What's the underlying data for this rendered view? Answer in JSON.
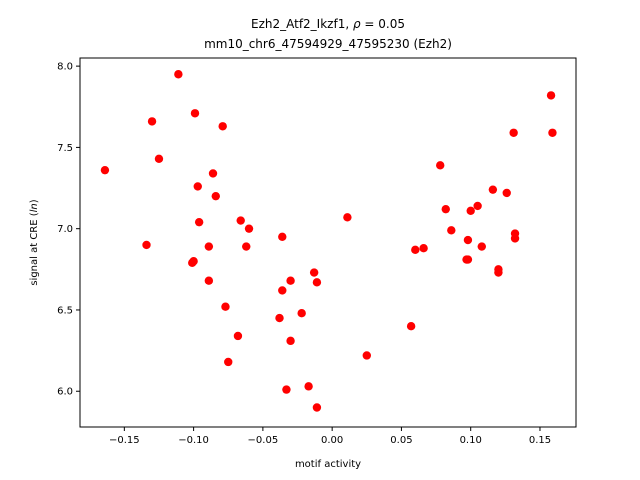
{
  "chart_data": {
    "type": "scatter",
    "title": {
      "prefix": "Ezh2_Atf2_Ikzf1, ",
      "rho_symbol": "ρ",
      "rho_value": " = 0.05",
      "line2": "mm10_chr6_47594929_47595230 (Ezh2)"
    },
    "xlabel": "motif activity",
    "ylabel": {
      "prefix": "signal at CRE (",
      "italic": "ln",
      "suffix": ")"
    },
    "xlim": [
      -0.182,
      0.176
    ],
    "ylim": [
      5.78,
      8.05
    ],
    "x_ticks": [
      {
        "value": -0.15,
        "label": "−0.15"
      },
      {
        "value": -0.1,
        "label": "−0.10"
      },
      {
        "value": -0.05,
        "label": "−0.05"
      },
      {
        "value": 0.0,
        "label": "0.00"
      },
      {
        "value": 0.05,
        "label": "0.05"
      },
      {
        "value": 0.1,
        "label": "0.10"
      },
      {
        "value": 0.15,
        "label": "0.15"
      }
    ],
    "y_ticks": [
      {
        "value": 6.0,
        "label": "6.0"
      },
      {
        "value": 6.5,
        "label": "6.5"
      },
      {
        "value": 7.0,
        "label": "7.0"
      },
      {
        "value": 7.5,
        "label": "7.5"
      },
      {
        "value": 8.0,
        "label": "8.0"
      }
    ],
    "grid": false,
    "marker_color": "#ff0000",
    "points": [
      {
        "x": -0.164,
        "y": 7.36
      },
      {
        "x": -0.134,
        "y": 6.9
      },
      {
        "x": -0.13,
        "y": 7.66
      },
      {
        "x": -0.125,
        "y": 7.43
      },
      {
        "x": -0.111,
        "y": 7.95
      },
      {
        "x": -0.101,
        "y": 6.79
      },
      {
        "x": -0.1,
        "y": 6.8
      },
      {
        "x": -0.099,
        "y": 7.71
      },
      {
        "x": -0.097,
        "y": 7.26
      },
      {
        "x": -0.096,
        "y": 7.04
      },
      {
        "x": -0.089,
        "y": 6.89
      },
      {
        "x": -0.089,
        "y": 6.68
      },
      {
        "x": -0.086,
        "y": 7.34
      },
      {
        "x": -0.084,
        "y": 7.2
      },
      {
        "x": -0.079,
        "y": 7.63
      },
      {
        "x": -0.077,
        "y": 6.52
      },
      {
        "x": -0.075,
        "y": 6.18
      },
      {
        "x": -0.068,
        "y": 6.34
      },
      {
        "x": -0.066,
        "y": 7.05
      },
      {
        "x": -0.062,
        "y": 6.89
      },
      {
        "x": -0.06,
        "y": 7.0
      },
      {
        "x": -0.038,
        "y": 6.45
      },
      {
        "x": -0.036,
        "y": 6.95
      },
      {
        "x": -0.036,
        "y": 6.62
      },
      {
        "x": -0.033,
        "y": 6.01
      },
      {
        "x": -0.03,
        "y": 6.68
      },
      {
        "x": -0.03,
        "y": 6.31
      },
      {
        "x": -0.022,
        "y": 6.48
      },
      {
        "x": -0.017,
        "y": 6.03
      },
      {
        "x": -0.013,
        "y": 6.73
      },
      {
        "x": -0.011,
        "y": 6.67
      },
      {
        "x": -0.011,
        "y": 5.9
      },
      {
        "x": 0.011,
        "y": 7.07
      },
      {
        "x": 0.025,
        "y": 6.22
      },
      {
        "x": 0.057,
        "y": 6.4
      },
      {
        "x": 0.06,
        "y": 6.87
      },
      {
        "x": 0.066,
        "y": 6.88
      },
      {
        "x": 0.078,
        "y": 7.39
      },
      {
        "x": 0.082,
        "y": 7.12
      },
      {
        "x": 0.086,
        "y": 6.99
      },
      {
        "x": 0.097,
        "y": 6.81
      },
      {
        "x": 0.098,
        "y": 6.81
      },
      {
        "x": 0.098,
        "y": 6.93
      },
      {
        "x": 0.1,
        "y": 7.11
      },
      {
        "x": 0.105,
        "y": 7.14
      },
      {
        "x": 0.108,
        "y": 6.89
      },
      {
        "x": 0.116,
        "y": 7.24
      },
      {
        "x": 0.12,
        "y": 6.75
      },
      {
        "x": 0.12,
        "y": 6.73
      },
      {
        "x": 0.126,
        "y": 7.22
      },
      {
        "x": 0.131,
        "y": 7.59
      },
      {
        "x": 0.132,
        "y": 6.97
      },
      {
        "x": 0.132,
        "y": 6.94
      },
      {
        "x": 0.158,
        "y": 7.82
      },
      {
        "x": 0.159,
        "y": 7.59
      }
    ]
  }
}
